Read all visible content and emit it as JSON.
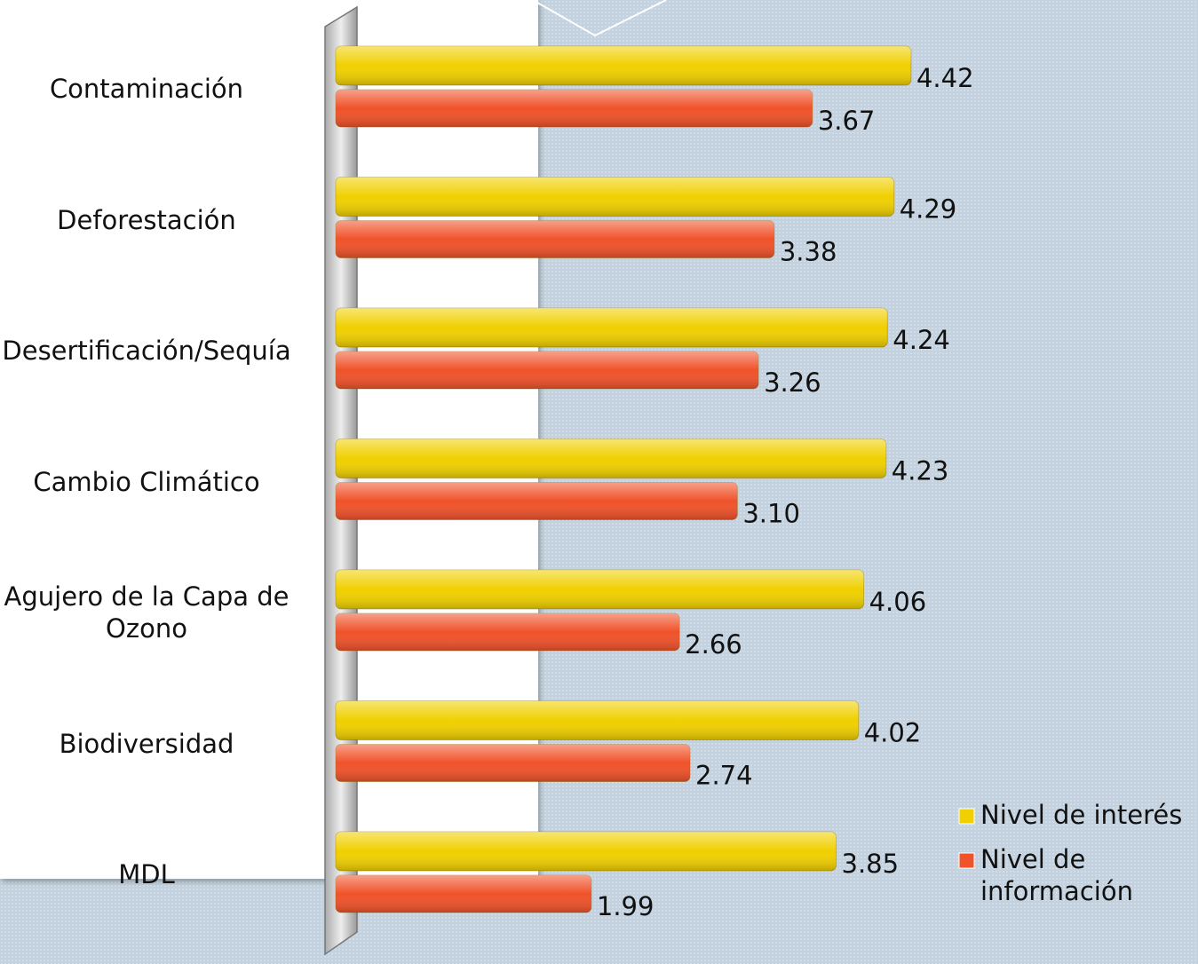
{
  "chart_data": {
    "type": "hbar",
    "categories": [
      "Contaminación",
      "Deforestación",
      "Desertificación/Sequía",
      "Cambio Climático",
      "Agujero de la Capa de Ozono",
      "Biodiversidad",
      "MDL"
    ],
    "series": [
      {
        "name": "Nivel de interés",
        "color": "#f0d000",
        "values": [
          4.42,
          4.29,
          4.24,
          4.23,
          4.06,
          4.02,
          3.85
        ],
        "value_labels": [
          "4.42",
          "4.29",
          "4.24",
          "4.23",
          "4.06",
          "4.02",
          "3.85"
        ]
      },
      {
        "name": "Nivel de información",
        "color": "#f0522a",
        "values": [
          3.67,
          3.38,
          3.26,
          3.1,
          2.66,
          2.74,
          1.99
        ],
        "value_labels": [
          "3.67",
          "3.38",
          "3.26",
          "3.10",
          "2.66",
          "2.74",
          "1.99"
        ]
      }
    ],
    "xlim": [
      0,
      6.6
    ],
    "legend": "bottom-right"
  }
}
